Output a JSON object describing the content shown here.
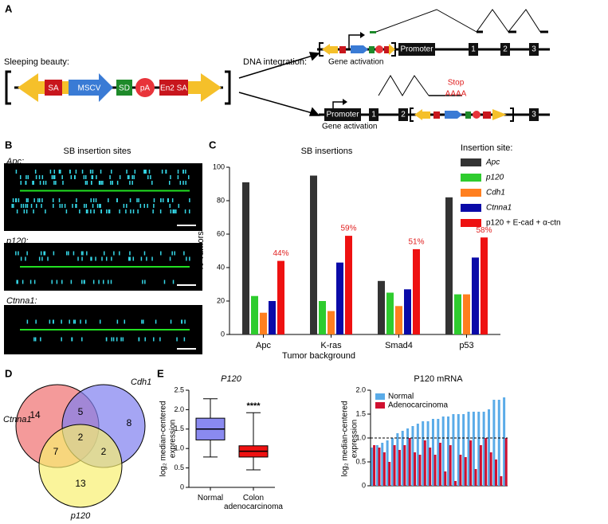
{
  "panels": {
    "a": {
      "label": "A",
      "construct_title": "Sleeping beauty:",
      "elements": [
        "SA",
        "MSCV",
        "SD",
        "pA",
        "En2 SA"
      ],
      "integration_title": "DNA integration:",
      "top": {
        "promoter": "Promoter",
        "exons": [
          "1",
          "2",
          "3"
        ],
        "caption": "Gene activation"
      },
      "bottom": {
        "promoter": "Promoter",
        "exons": [
          "1",
          "2",
          "3"
        ],
        "stop": "Stop",
        "polya": "AAAA",
        "caption": "Gene activation"
      }
    },
    "b": {
      "label": "B",
      "title": "SB insertion sites",
      "tracks": [
        "Apc:",
        "p120:",
        "Ctnna1:"
      ]
    },
    "c": {
      "label": "C"
    },
    "d": {
      "label": "D",
      "sets": [
        "Ctnna1",
        "Cdh1",
        "p120"
      ],
      "counts": [
        "14",
        "5",
        "8",
        "2",
        "7",
        "2",
        "13"
      ]
    },
    "e": {
      "label": "E"
    }
  },
  "chart_data": [
    {
      "type": "bar",
      "title": "SB insertions",
      "ylabel": "% Tumors",
      "xlabel": "Tumor background",
      "legend_title": "Insertion site:",
      "categories": [
        "Apc",
        "K-ras",
        "Smad4",
        "p53"
      ],
      "series": [
        {
          "name": "Apc",
          "color": "#333333",
          "values": [
            91,
            95,
            32,
            82
          ]
        },
        {
          "name": "p120",
          "color": "#2ecc2e",
          "values": [
            23,
            20,
            25,
            24
          ]
        },
        {
          "name": "Cdh1",
          "color": "#ff7f1f",
          "values": [
            13,
            14,
            17,
            24
          ]
        },
        {
          "name": "Ctnna1",
          "color": "#0a0aa8",
          "values": [
            20,
            43,
            27,
            46
          ]
        },
        {
          "name": "p120 + E-cad + α-ctn",
          "color": "#ee1111",
          "values": [
            44,
            59,
            51,
            58
          ],
          "value_labels": [
            "44%",
            "59%",
            "51%",
            "58%"
          ]
        }
      ],
      "ylim": [
        0,
        100
      ],
      "yticks": [
        0,
        20,
        40,
        60,
        80,
        100
      ]
    },
    {
      "type": "box",
      "title": "P120",
      "ylabel": [
        "log₂ median-centered",
        "expression"
      ],
      "categories": [
        "Normal",
        "Colon adenocarcinoma"
      ],
      "boxes": [
        {
          "min": 0.78,
          "q1": 1.22,
          "median": 1.5,
          "q3": 1.78,
          "max": 2.28,
          "color": "#8a8af0"
        },
        {
          "min": 0.45,
          "q1": 0.78,
          "median": 0.93,
          "q3": 1.07,
          "max": 1.92,
          "color": "#ee1111"
        }
      ],
      "annotation": "****",
      "ylim": [
        0,
        2.5
      ],
      "yticks": [
        0,
        0.5,
        {
          "value": 1,
          "label": "1.0"
        },
        1.5,
        {
          "value": 2,
          "label": "2.0"
        },
        2.5
      ]
    },
    {
      "type": "pairbar",
      "title": "P120 mRNA",
      "ylabel": [
        "log₂ median-centered",
        "expression"
      ],
      "legend": "upper left",
      "series": [
        {
          "name": "Normal",
          "color": "#5aabe8",
          "values": [
            0.8,
            0.85,
            0.9,
            0.95,
            1.0,
            1.1,
            1.15,
            1.2,
            1.25,
            1.3,
            1.35,
            1.35,
            1.4,
            1.4,
            1.45,
            1.45,
            1.5,
            1.5,
            1.5,
            1.55,
            1.55,
            1.55,
            1.55,
            1.6,
            1.8,
            1.8,
            1.85
          ]
        },
        {
          "name": "Adenocarcinoma",
          "color": "#d01030",
          "values": [
            0.85,
            0.8,
            0.7,
            0.5,
            0.85,
            0.75,
            0.85,
            1.0,
            0.7,
            0.65,
            0.95,
            0.8,
            0.65,
            0.9,
            0.3,
            0.85,
            0.1,
            0.65,
            0.6,
            0.95,
            0.35,
            0.85,
            1.0,
            0.7,
            0.55,
            0.2,
            1.0
          ]
        }
      ],
      "hline": 1.0,
      "ylim": [
        0,
        2
      ],
      "yticks": [
        0,
        0.5,
        {
          "value": 1,
          "label": "1.0"
        },
        1.5,
        {
          "value": 2,
          "label": "2.0"
        }
      ]
    }
  ]
}
